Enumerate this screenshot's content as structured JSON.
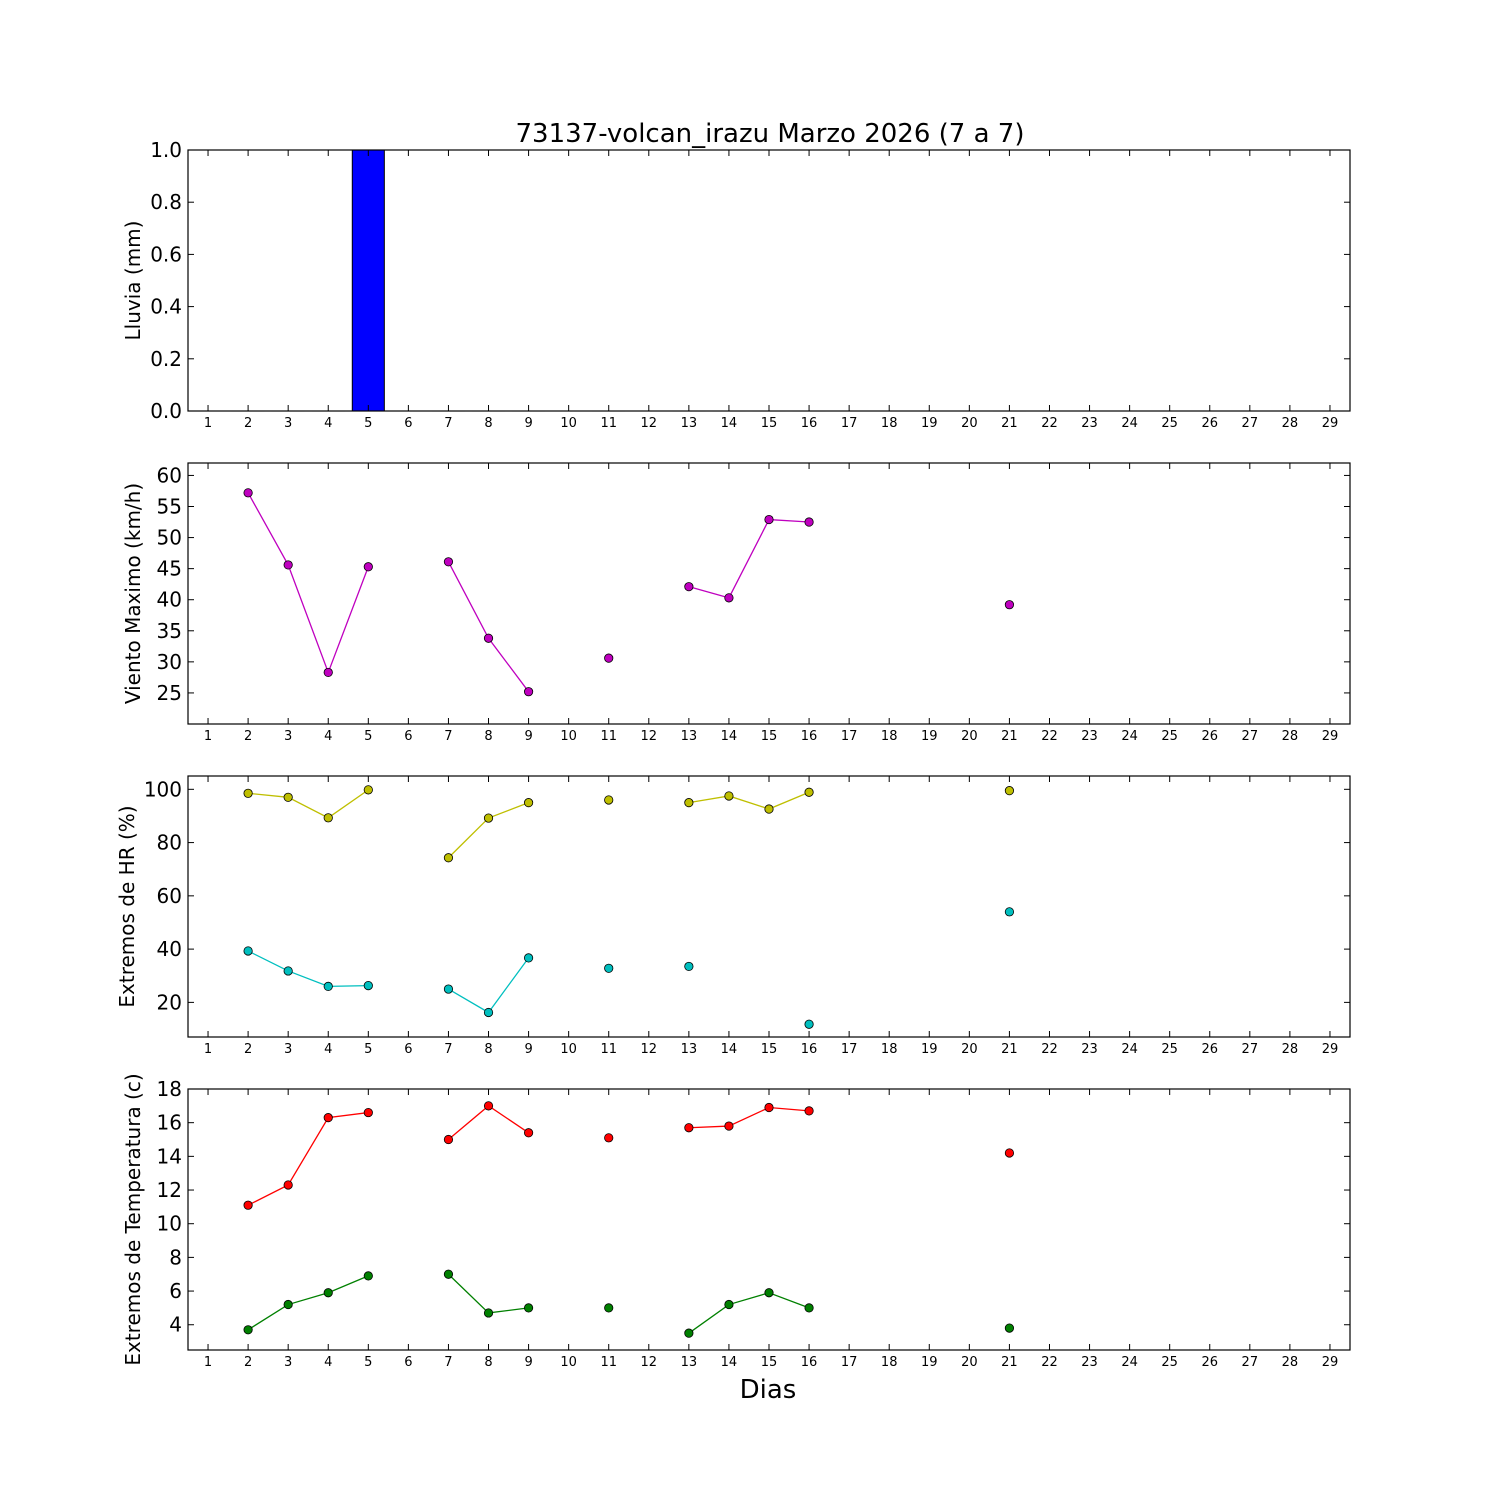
{
  "chart_data": [
    {
      "type": "bar",
      "title": "73137-volcan_irazu Marzo 2026  (7 a 7)",
      "xlabel": "",
      "ylabel": "Lluvia (mm)",
      "x": [
        1,
        2,
        3,
        4,
        5,
        6,
        7,
        8,
        9,
        10,
        11,
        12,
        13,
        14,
        15,
        16,
        17,
        18,
        19,
        20,
        21,
        22,
        23,
        24,
        25,
        26,
        27,
        28,
        29
      ],
      "xlim": [
        0.5,
        29.5
      ],
      "ylim": [
        0,
        1.0
      ],
      "yticks": [
        0.0,
        0.2,
        0.4,
        0.6,
        0.8,
        1.0
      ],
      "ytick_labels": [
        "0.0",
        "0.2",
        "0.4",
        "0.6",
        "0.8",
        "1.0"
      ],
      "series": [
        {
          "color": "#0000ff",
          "points": [
            [
              2,
              0
            ],
            [
              3,
              0
            ],
            [
              4,
              0
            ],
            [
              5,
              1.0
            ],
            [
              7,
              0
            ],
            [
              8,
              0
            ],
            [
              9,
              0
            ],
            [
              11,
              0
            ],
            [
              13,
              0
            ],
            [
              14,
              0
            ],
            [
              15,
              0
            ],
            [
              16,
              0
            ],
            [
              21,
              0
            ]
          ]
        }
      ]
    },
    {
      "type": "line",
      "title": "",
      "xlabel": "",
      "ylabel": "Viento Maximo (km/h)",
      "x": [
        1,
        2,
        3,
        4,
        5,
        6,
        7,
        8,
        9,
        10,
        11,
        12,
        13,
        14,
        15,
        16,
        17,
        18,
        19,
        20,
        21,
        22,
        23,
        24,
        25,
        26,
        27,
        28,
        29
      ],
      "xlim": [
        0.5,
        29.5
      ],
      "ylim": [
        20,
        62
      ],
      "yticks": [
        25,
        30,
        35,
        40,
        45,
        50,
        55,
        60
      ],
      "ytick_labels": [
        "25",
        "30",
        "35",
        "40",
        "45",
        "50",
        "55",
        "60"
      ],
      "series": [
        {
          "color": "#bf00bf",
          "segments": [
            [
              [
                2,
                57.2
              ],
              [
                3,
                45.6
              ],
              [
                4,
                28.3
              ],
              [
                5,
                45.3
              ]
            ],
            [
              [
                7,
                46.1
              ],
              [
                8,
                33.8
              ],
              [
                9,
                25.2
              ]
            ],
            [
              [
                11,
                30.6
              ]
            ],
            [
              [
                13,
                42.1
              ],
              [
                14,
                40.3
              ],
              [
                15,
                52.9
              ],
              [
                16,
                52.5
              ]
            ],
            [
              [
                21,
                39.2
              ]
            ]
          ]
        }
      ]
    },
    {
      "type": "line",
      "title": "",
      "xlabel": "",
      "ylabel": "Extremos de HR (%)",
      "x": [
        1,
        2,
        3,
        4,
        5,
        6,
        7,
        8,
        9,
        10,
        11,
        12,
        13,
        14,
        15,
        16,
        17,
        18,
        19,
        20,
        21,
        22,
        23,
        24,
        25,
        26,
        27,
        28,
        29
      ],
      "xlim": [
        0.5,
        29.5
      ],
      "ylim": [
        7,
        105
      ],
      "yticks": [
        20,
        40,
        60,
        80,
        100
      ],
      "ytick_labels": [
        "20",
        "40",
        "60",
        "80",
        "100"
      ],
      "series": [
        {
          "color": "#bfbf00",
          "segments": [
            [
              [
                2,
                98.5
              ],
              [
                3,
                97
              ],
              [
                4,
                89.3
              ],
              [
                5,
                99.8
              ]
            ],
            [
              [
                7,
                74.3
              ],
              [
                8,
                89.2
              ],
              [
                9,
                95
              ]
            ],
            [
              [
                11,
                96
              ]
            ],
            [
              [
                13,
                95
              ],
              [
                14,
                97.5
              ],
              [
                15,
                92.6
              ],
              [
                16,
                98.9
              ]
            ],
            [
              [
                21,
                99.5
              ]
            ]
          ]
        },
        {
          "color": "#00bfbf",
          "segments": [
            [
              [
                2,
                39.3
              ],
              [
                3,
                31.8
              ],
              [
                4,
                26
              ],
              [
                5,
                26.3
              ]
            ],
            [
              [
                7,
                25
              ],
              [
                8,
                16.2
              ],
              [
                9,
                36.7
              ]
            ],
            [
              [
                11,
                32.8
              ]
            ],
            [
              [
                13,
                33.5
              ]
            ],
            [
              [
                16,
                11.8
              ]
            ],
            [
              [
                21,
                54
              ]
            ]
          ]
        }
      ]
    },
    {
      "type": "line",
      "title": "",
      "xlabel": "Dias",
      "ylabel": "Extremos de Temperatura (c)",
      "x": [
        1,
        2,
        3,
        4,
        5,
        6,
        7,
        8,
        9,
        10,
        11,
        12,
        13,
        14,
        15,
        16,
        17,
        18,
        19,
        20,
        21,
        22,
        23,
        24,
        25,
        26,
        27,
        28,
        29
      ],
      "xlim": [
        0.5,
        29.5
      ],
      "ylim": [
        2.5,
        18
      ],
      "yticks": [
        4,
        6,
        8,
        10,
        12,
        14,
        16,
        18
      ],
      "ytick_labels": [
        "4",
        "6",
        "8",
        "10",
        "12",
        "14",
        "16",
        "18"
      ],
      "series": [
        {
          "color": "#ff0000",
          "segments": [
            [
              [
                2,
                11.1
              ],
              [
                3,
                12.3
              ],
              [
                4,
                16.3
              ],
              [
                5,
                16.6
              ]
            ],
            [
              [
                7,
                15
              ],
              [
                8,
                17
              ],
              [
                9,
                15.4
              ]
            ],
            [
              [
                11,
                15.1
              ]
            ],
            [
              [
                13,
                15.7
              ],
              [
                14,
                15.8
              ],
              [
                15,
                16.9
              ],
              [
                16,
                16.7
              ]
            ],
            [
              [
                21,
                14.2
              ]
            ]
          ]
        },
        {
          "color": "#008000",
          "segments": [
            [
              [
                2,
                3.7
              ],
              [
                3,
                5.2
              ],
              [
                4,
                5.9
              ],
              [
                5,
                6.9
              ]
            ],
            [
              [
                7,
                7
              ],
              [
                8,
                4.7
              ],
              [
                9,
                5
              ]
            ],
            [
              [
                11,
                5
              ]
            ],
            [
              [
                13,
                3.5
              ],
              [
                14,
                5.2
              ],
              [
                15,
                5.9
              ],
              [
                16,
                5
              ]
            ],
            [
              [
                21,
                3.8
              ]
            ]
          ]
        }
      ]
    }
  ]
}
